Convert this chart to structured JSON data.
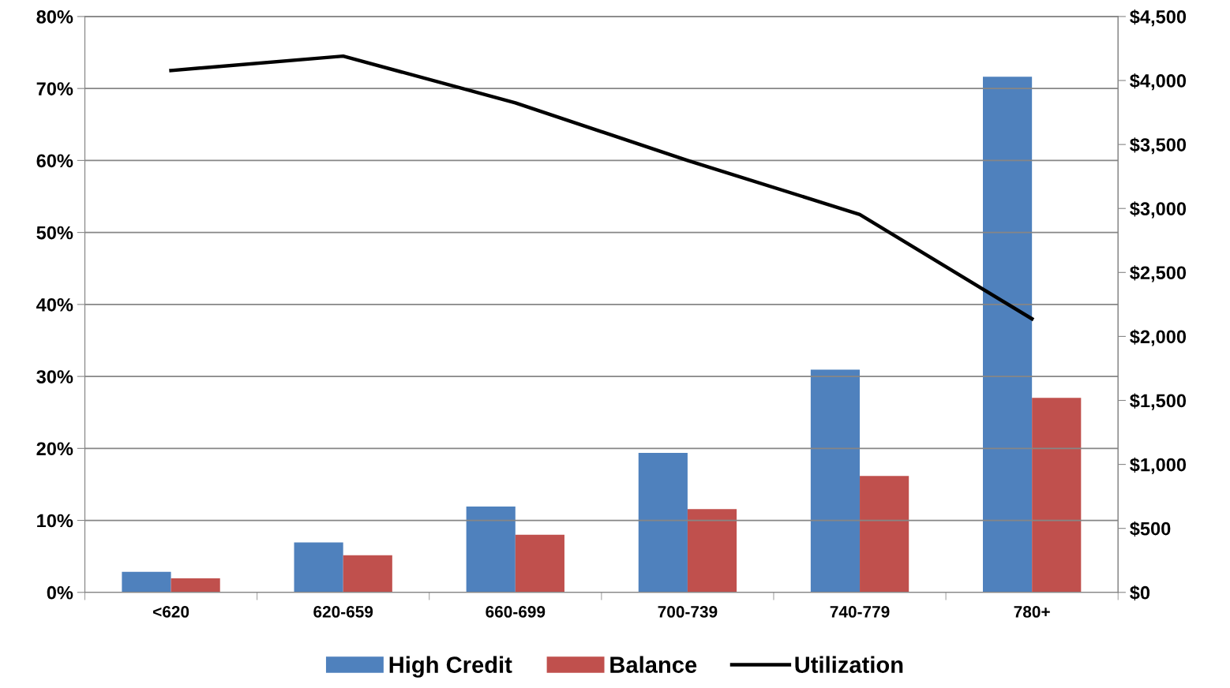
{
  "chart_data": {
    "type": "bar",
    "categories": [
      "<620",
      "620-659",
      "660-699",
      "700-739",
      "740-779",
      "780+"
    ],
    "series": [
      {
        "name": "High Credit",
        "color": "#4f81bd",
        "axis": "y2",
        "values": [
          160,
          390,
          670,
          1090,
          1740,
          4030
        ]
      },
      {
        "name": "Balance",
        "color": "#c0504d",
        "axis": "y2",
        "values": [
          110,
          290,
          450,
          650,
          910,
          1520
        ]
      },
      {
        "name": "Utilization",
        "color": "#000000",
        "type": "line",
        "values": [
          72.5,
          74.5,
          68,
          60,
          52.5,
          38
        ]
      }
    ],
    "ylim": [
      0,
      80
    ],
    "yticks": [
      {
        "value": 0,
        "label": "0%"
      },
      {
        "value": 10,
        "label": "10%"
      },
      {
        "value": 20,
        "label": "20%"
      },
      {
        "value": 30,
        "label": "30%"
      },
      {
        "value": 40,
        "label": "40%"
      },
      {
        "value": 50,
        "label": "50%"
      },
      {
        "value": 60,
        "label": "60%"
      },
      {
        "value": 70,
        "label": "70%"
      },
      {
        "value": 80,
        "label": "80%"
      }
    ],
    "y2lim": [
      0,
      4500
    ],
    "y2ticks": [
      {
        "value": 0,
        "label": "$0"
      },
      {
        "value": 500,
        "label": "$500"
      },
      {
        "value": 1000,
        "label": "$1,000"
      },
      {
        "value": 1500,
        "label": "$1,500"
      },
      {
        "value": 2000,
        "label": "$2,000"
      },
      {
        "value": 2500,
        "label": "$2,500"
      },
      {
        "value": 3000,
        "label": "$3,000"
      },
      {
        "value": 3500,
        "label": "$3,500"
      },
      {
        "value": 4000,
        "label": "$4,000"
      },
      {
        "value": 4500,
        "label": "$4,500"
      }
    ],
    "grid": "y",
    "legend": "bottom",
    "marker": "none",
    "line_style": "solid"
  }
}
